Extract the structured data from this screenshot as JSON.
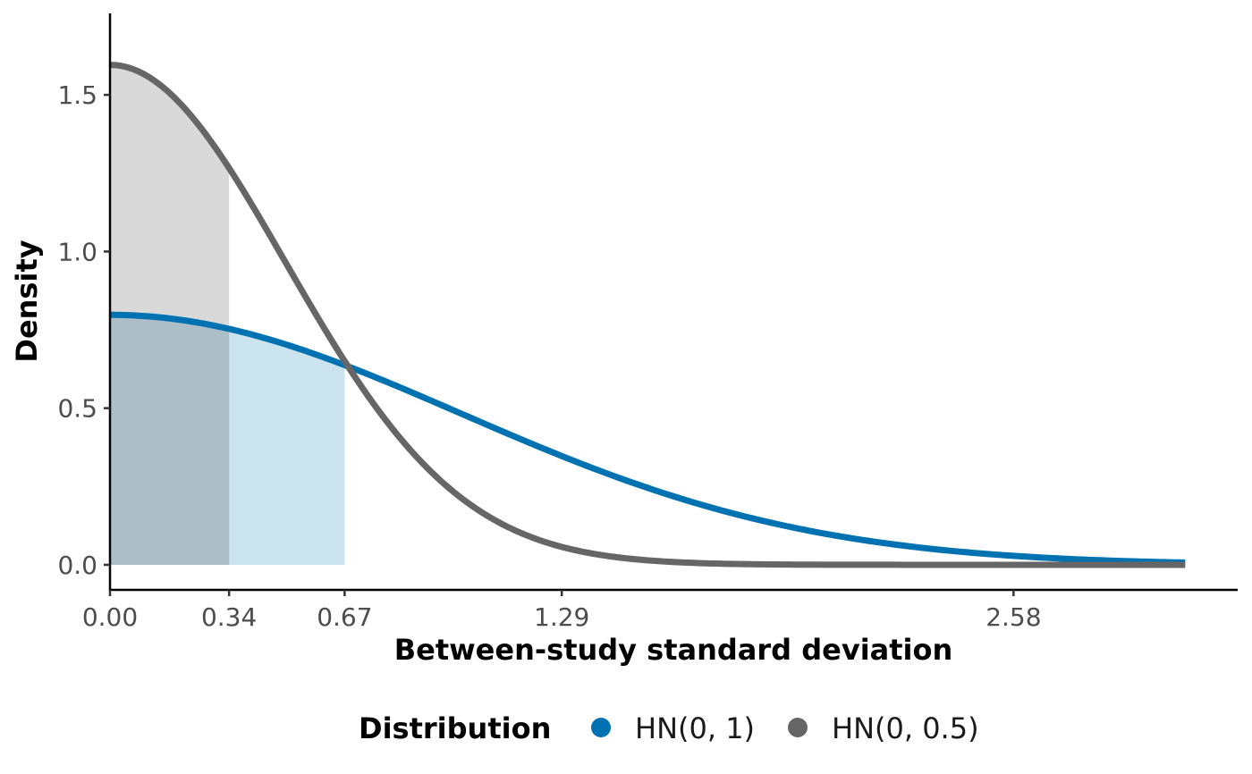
{
  "chart_data": {
    "type": "area",
    "xlabel": "Between-study standard deviation",
    "ylabel": "Density",
    "xlim": [
      0,
      3.22
    ],
    "ylim": [
      -0.08,
      1.76
    ],
    "x_ticks": [
      0,
      0.34,
      0.67,
      1.29,
      2.58
    ],
    "x_tick_labels": [
      "0.00",
      "0.34",
      "0.67",
      "1.29",
      "2.58"
    ],
    "y_ticks": [
      0,
      0.5,
      1.0,
      1.5
    ],
    "y_tick_labels": [
      "0.0",
      "0.5",
      "1.0",
      "1.5"
    ],
    "x_max": 3.07,
    "grid": false,
    "legend": {
      "title": "Distribution",
      "position": "bottom"
    },
    "series": [
      {
        "name": "HN(0, 1)",
        "distribution": "half-normal",
        "sigma": 1,
        "color": "#0072B2",
        "shade_to": 0.67,
        "fill_color": "#cce3f0"
      },
      {
        "name": "HN(0, 0.5)",
        "distribution": "half-normal",
        "sigma": 0.5,
        "color": "#666666",
        "shade_to": 0.34,
        "fill_color": "#d9d9d9"
      }
    ],
    "overlap_fill_color": "#acbec8"
  }
}
